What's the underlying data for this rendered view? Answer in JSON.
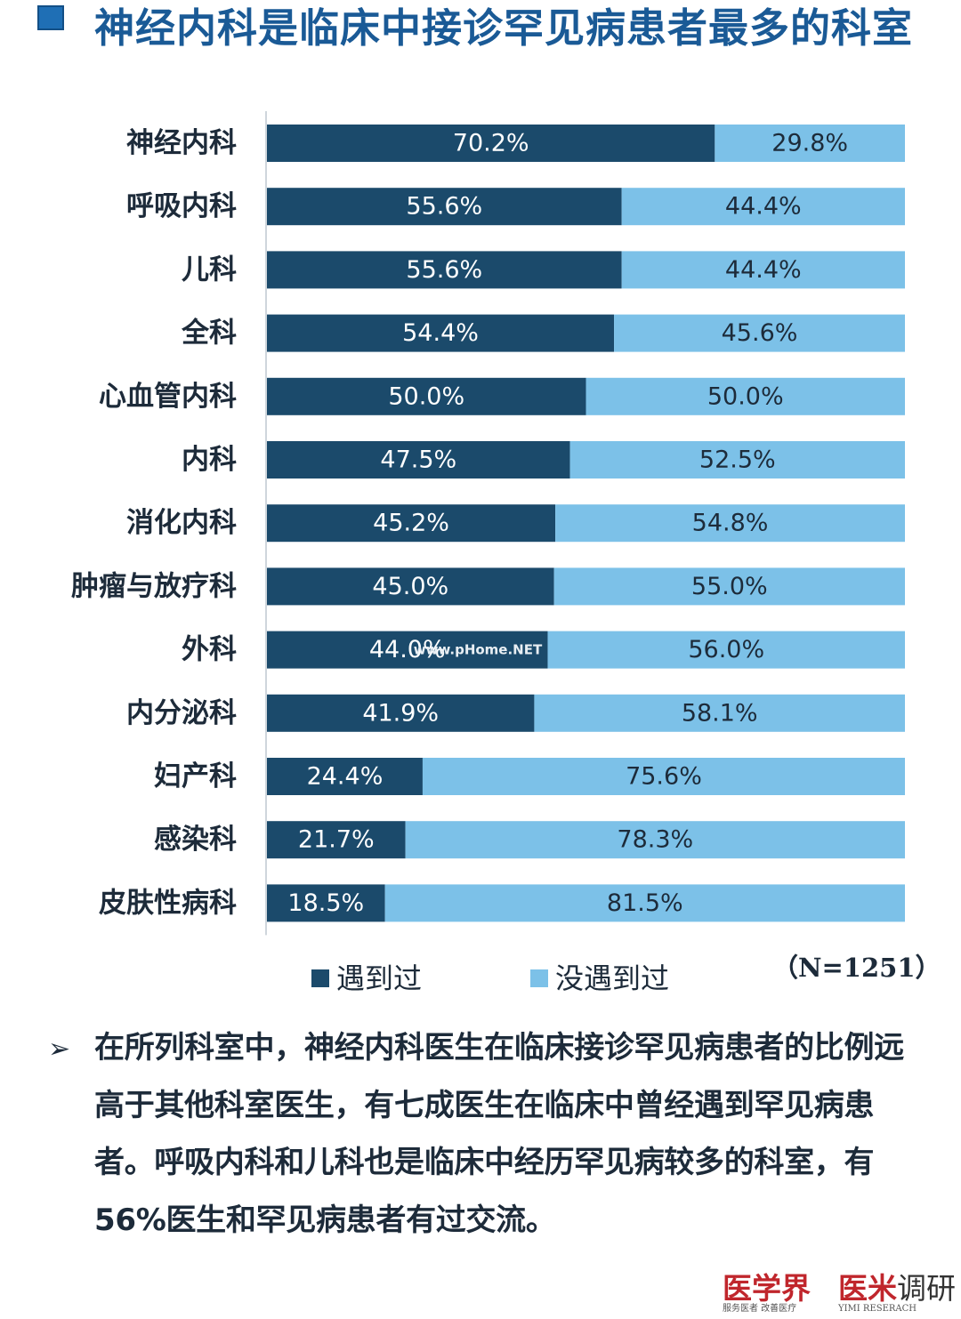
{
  "title": "神经内科是临床中接诊罕见病患者最多的科室",
  "sample_note": "（N=1251）",
  "chart_data": {
    "type": "bar",
    "orientation": "horizontal",
    "stacked": "100%",
    "categories": [
      "神经内科",
      "呼吸内科",
      "儿科",
      "全科",
      "心血管内科",
      "内科",
      "消化内科",
      "肿瘤与放疗科",
      "外科",
      "内分泌科",
      "妇产科",
      "感染科",
      "皮肤性病科"
    ],
    "series": [
      {
        "name": "遇到过",
        "color": "#1b4a6b",
        "values": [
          70.2,
          55.6,
          55.6,
          54.4,
          50.0,
          47.5,
          45.2,
          45.0,
          44.0,
          41.9,
          24.4,
          21.7,
          18.5
        ],
        "labels": [
          "70.2%",
          "55.6%",
          "55.6%",
          "54.4%",
          "50.0%",
          "47.5%",
          "45.2%",
          "45.0%",
          "44.0%",
          "41.9%",
          "24.4%",
          "21.7%",
          "18.5%"
        ]
      },
      {
        "name": "没遇到过",
        "color": "#7cc1e8",
        "values": [
          29.8,
          44.4,
          44.4,
          45.6,
          50.0,
          52.5,
          54.8,
          55.0,
          56.0,
          58.1,
          75.6,
          78.3,
          81.5
        ],
        "labels": [
          "29.8%",
          "44.4%",
          "44.4%",
          "45.6%",
          "50.0%",
          "52.5%",
          "54.8%",
          "55.0%",
          "56.0%",
          "58.1%",
          "75.6%",
          "78.3%",
          "81.5%"
        ]
      }
    ],
    "xlim": [
      0,
      100
    ],
    "legend_position": "bottom"
  },
  "legend": {
    "seen": "遇到过",
    "not_seen": "没遇到过"
  },
  "watermark": "www.pHome.NET",
  "summary_bullet": "➢",
  "summary": "在所列科室中，神经内科医生在临床接诊罕见病患者的比例远高于其他科室医生，有七成医生在临床中曾经遇到罕见病患者。呼吸内科和儿科也是临床中经历罕见病较多的科室，有56%医生和罕见病患者有过交流。",
  "footer": {
    "logo_a": "医学界",
    "logo_a_tagline": "服务医者 改善医疗",
    "logo_b_1": "医米",
    "logo_b_2": "调研",
    "logo_b_tagline": "YIMI RESERACH"
  },
  "colors": {
    "title": "#1a5a96",
    "seen": "#1b4a6b",
    "not_seen": "#7cc1e8",
    "logo": "#c0262c"
  }
}
